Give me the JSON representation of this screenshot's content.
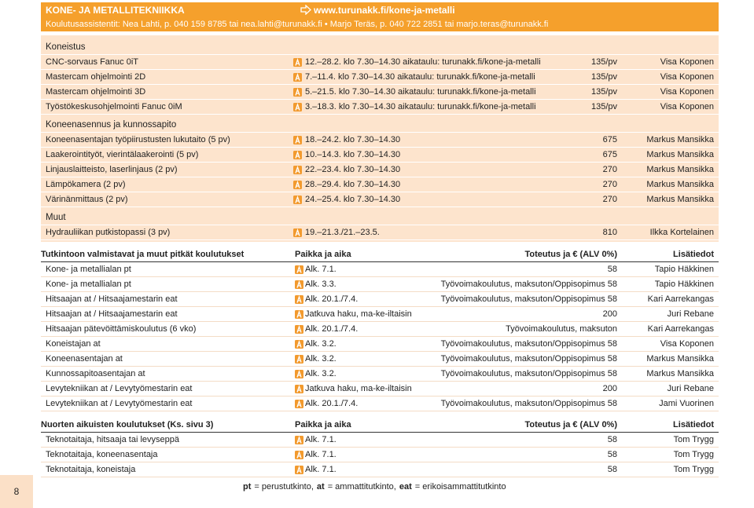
{
  "header": {
    "title": "KONE- JA METALLITEKNIIKKA",
    "link": "www.turunakk.fi/kone-ja-metalli",
    "assistants": "Koulutusassistentit: Nea Lahti, p. 040 159 8785 tai nea.lahti@turunakk.fi • Marjo Teräs, p. 040 722 2851 tai marjo.teras@turunakk.fi"
  },
  "short_courses": [
    {
      "title": "Koneistus",
      "rows": [
        [
          "CNC-sorvaus Fanuc 0iT",
          "12.–28.2. klo 7.30–14.30 aikataulu: turunakk.fi/kone-ja-metalli",
          "135/pv",
          "Visa Koponen"
        ],
        [
          "Mastercam ohjelmointi 2D",
          "7.–11.4. klo 7.30–14.30 aikataulu: turunakk.fi/kone-ja-metalli",
          "135/pv",
          "Visa Koponen"
        ],
        [
          "Mastercam ohjelmointi 3D",
          "5.–21.5. klo 7.30–14.30 aikataulu: turunakk.fi/kone-ja-metalli",
          "135/pv",
          "Visa Koponen"
        ],
        [
          "Työstökeskusohjelmointi Fanuc 0iM",
          "3.–18.3. klo 7.30–14.30 aikataulu: turunakk.fi/kone-ja-metalli",
          "135/pv",
          "Visa Koponen"
        ]
      ]
    },
    {
      "title": "Koneenasennus ja kunnossapito",
      "rows": [
        [
          "Koneenasentajan työpiirustusten lukutaito (5 pv)",
          "18.–24.2. klo 7.30–14.30",
          "675",
          "Markus Mansikka"
        ],
        [
          "Laakerointityöt, vierintälaakerointi (5 pv)",
          "10.–14.3. klo 7.30–14.30",
          "675",
          "Markus Mansikka"
        ],
        [
          "Linjauslaitteisto, laserlinjaus (2 pv)",
          "22.–23.4. klo 7.30–14.30",
          "270",
          "Markus Mansikka"
        ],
        [
          "Lämpökamera (2 pv)",
          "28.–29.4. klo 7.30–14.30",
          "270",
          "Markus Mansikka"
        ],
        [
          "Värinänmittaus (2 pv)",
          "24.–25.4. klo 7.30–14.30",
          "270",
          "Markus Mansikka"
        ]
      ]
    },
    {
      "title": "Muut",
      "rows": [
        [
          "Hydrauliikan putkistopassi (3 pv)",
          "19.–21.3./21.–23.5.",
          "810",
          "Ilkka Kortelainen"
        ]
      ]
    }
  ],
  "tables": [
    {
      "headers": [
        "Tutkintoon valmistavat ja muut pitkät koulutukset",
        "Paikka ja aika",
        "Toteutus ja € (ALV 0%)",
        "Lisätiedot"
      ],
      "rows": [
        [
          "Kone- ja metallialan pt",
          "Alk. 7.1.",
          "58",
          "Tapio Häkkinen"
        ],
        [
          "Kone- ja metallialan pt",
          "Alk. 3.3.",
          "Työvoimakoulutus, maksuton/Oppisopimus 58",
          "Tapio Häkkinen"
        ],
        [
          "Hitsaajan at / Hitsaajamestarin eat",
          "Alk. 20.1./7.4.",
          "Työvoimakoulutus, maksuton/Oppisopimus 58",
          "Kari Aarrekangas"
        ],
        [
          "Hitsaajan at / Hitsaajamestarin eat",
          "Jatkuva haku, ma-ke-iltaisin",
          "200",
          "Juri Rebane"
        ],
        [
          "Hitsaajan pätevöittämiskoulutus (6 vko)",
          "Alk. 20.1./7.4.",
          "Työvoimakoulutus, maksuton",
          "Kari Aarrekangas"
        ],
        [
          "Koneistajan at",
          "Alk. 3.2.",
          "Työvoimakoulutus, maksuton/Oppisopimus 58",
          "Visa Koponen"
        ],
        [
          "Koneenasentajan at",
          "Alk. 3.2.",
          "Työvoimakoulutus, maksuton/Oppisopimus 58",
          "Markus Mansikka"
        ],
        [
          "Kunnossapitoasentajan at",
          "Alk. 3.2.",
          "Työvoimakoulutus, maksuton/Oppisopimus 58",
          "Markus Mansikka"
        ],
        [
          "Levytekniikan at / Levytyömestarin eat",
          "Jatkuva haku, ma-ke-iltaisin",
          "200",
          "Juri Rebane"
        ],
        [
          "Levytekniikan at / Levytyömestarin eat",
          "Alk. 20.1./7.4.",
          "Työvoimakoulutus, maksuton/Oppisopimus 58",
          "Jami Vuorinen"
        ]
      ]
    },
    {
      "headers": [
        "Nuorten aikuisten koulutukset (Ks. sivu 3)",
        "Paikka ja aika",
        "Toteutus ja € (ALV 0%)",
        "Lisätiedot"
      ],
      "rows": [
        [
          "Teknotaitaja, hitsaaja tai levyseppä",
          "Alk. 7.1.",
          "58",
          "Tom Trygg"
        ],
        [
          "Teknotaitaja, koneenasentaja",
          "Alk. 7.1.",
          "58",
          "Tom Trygg"
        ],
        [
          "Teknotaitaja, koneistaja",
          "Alk. 7.1.",
          "58",
          "Tom Trygg"
        ]
      ]
    }
  ],
  "footer": {
    "page_number": "8",
    "legend": [
      {
        "abbr": "pt",
        "meaning": "= perustutkinto,"
      },
      {
        "abbr": "at",
        "meaning": "= ammattitutkinto,"
      },
      {
        "abbr": "eat",
        "meaning": "= erikoisammattitutkinto"
      }
    ]
  }
}
